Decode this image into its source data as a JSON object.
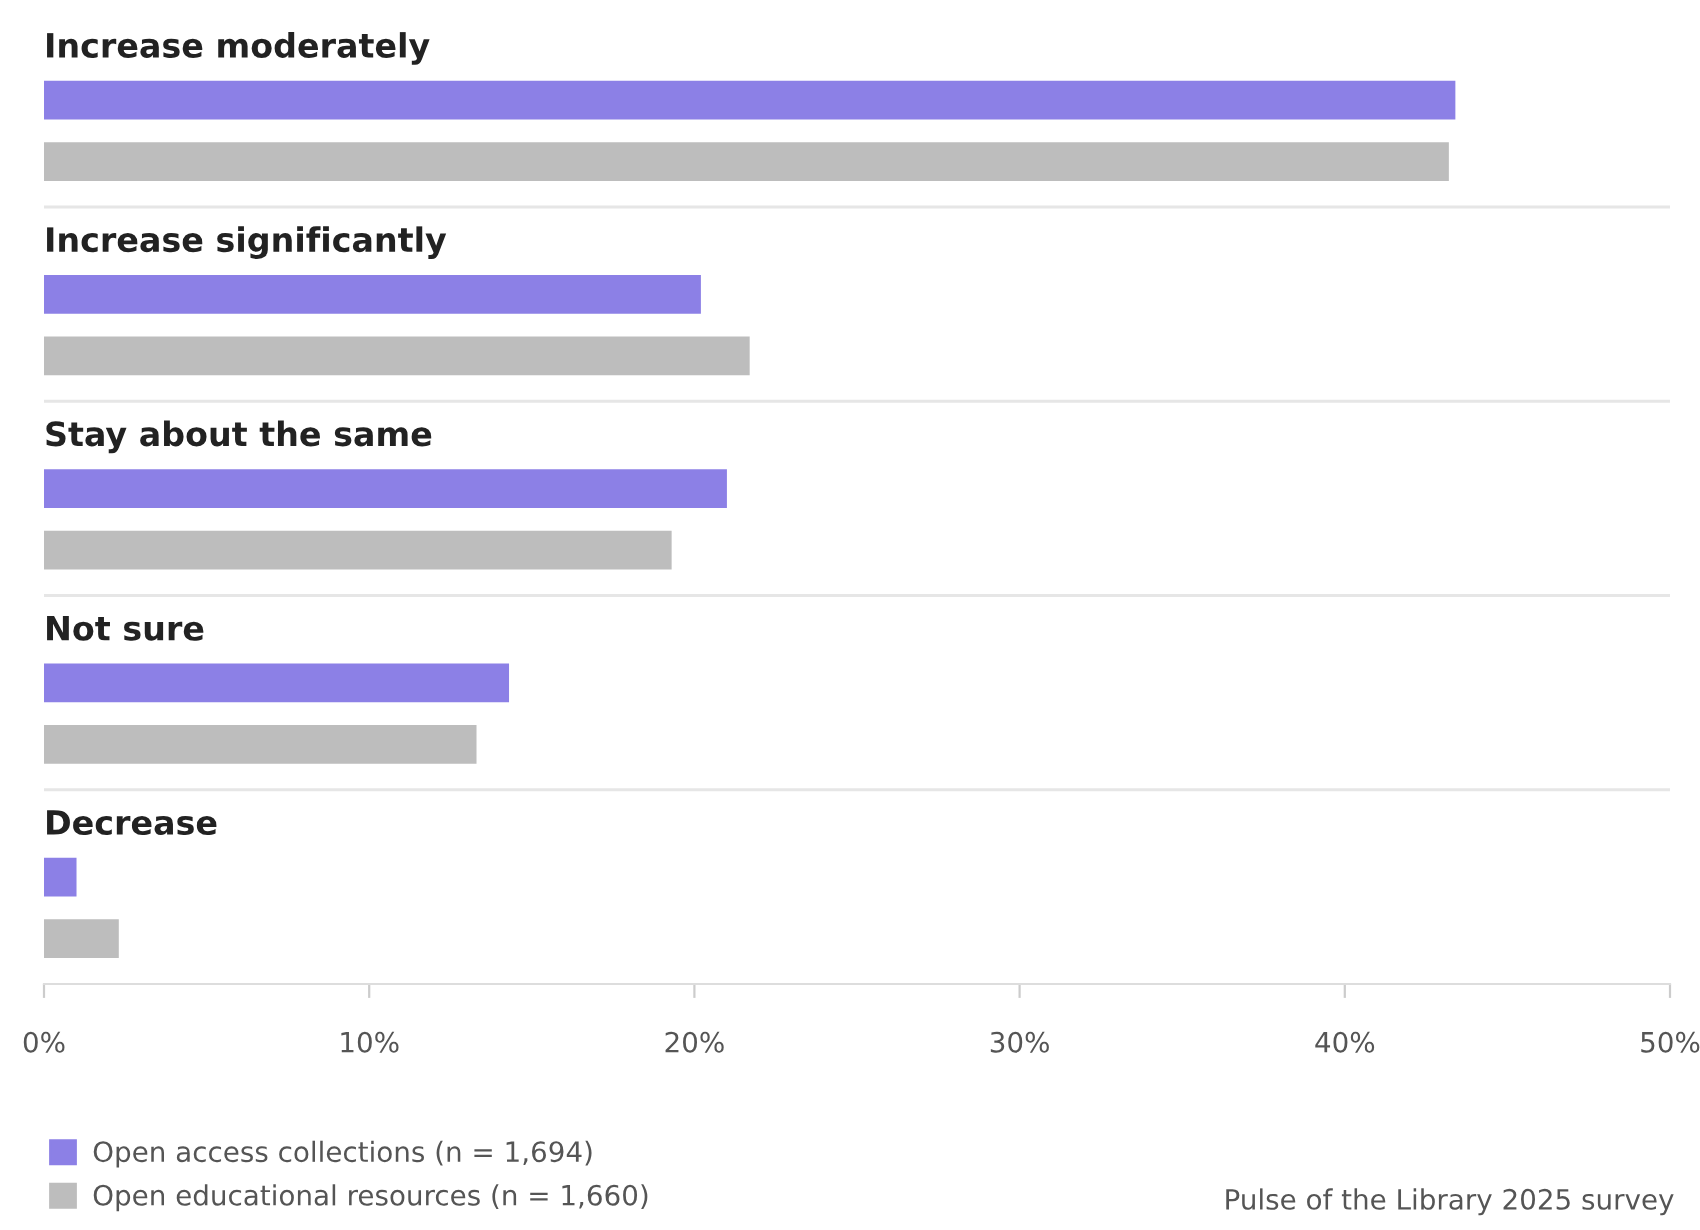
{
  "chart_data": {
    "type": "bar",
    "orientation": "horizontal",
    "categories": [
      "Increase moderately",
      "Increase significantly",
      "Stay about the same",
      "Not sure",
      "Decrease"
    ],
    "series": [
      {
        "name": "Open access collections (n = 1,694)",
        "color": "#8c80e6",
        "values": [
          43.4,
          20.2,
          21.0,
          14.3,
          1.0
        ]
      },
      {
        "name": "Open educational resources (n = 1,660)",
        "color": "#bdbdbd",
        "values": [
          43.2,
          21.7,
          19.3,
          13.3,
          2.3
        ]
      }
    ],
    "xlim": [
      0,
      50
    ],
    "xticks": [
      {
        "value": 0,
        "label": "0%"
      },
      {
        "value": 10,
        "label": "10%"
      },
      {
        "value": 20,
        "label": "20%"
      },
      {
        "value": 30,
        "label": "30%"
      },
      {
        "value": 40,
        "label": "40%"
      },
      {
        "value": 50,
        "label": "50%"
      }
    ],
    "grid": false,
    "legend": "bottom left",
    "tick_labels": "x",
    "annotations": [
      "Pulse of the Library 2025 survey"
    ]
  }
}
